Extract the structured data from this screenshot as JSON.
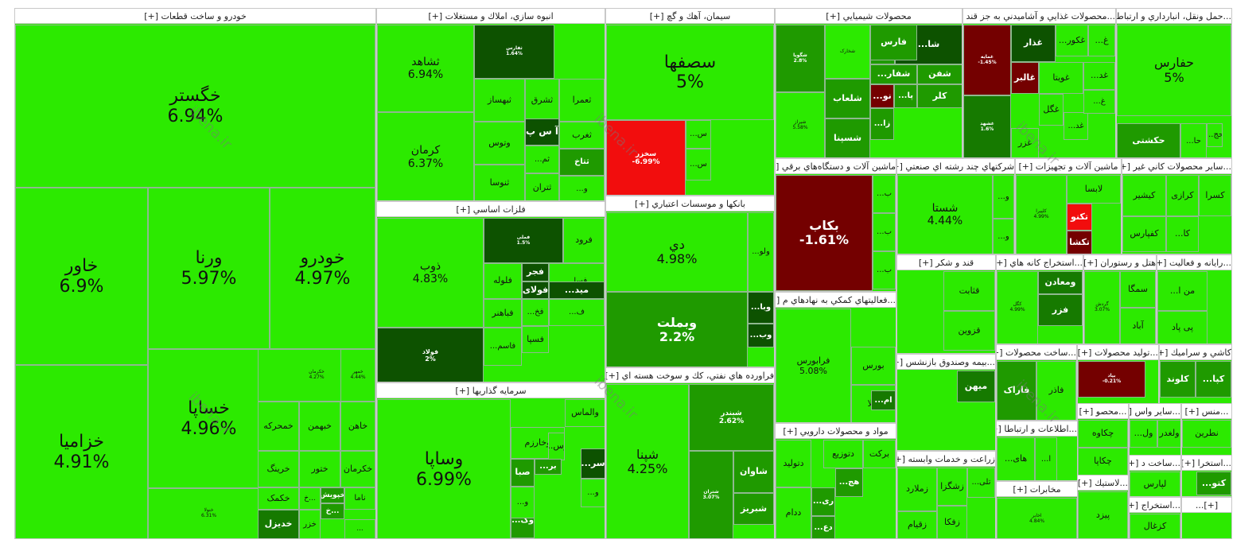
{
  "chart_data": {
    "type": "treemap",
    "title": "",
    "colors": {
      "up_bright": "#2cea00",
      "up": "#22bb00",
      "up_mid": "#1f9a00",
      "up_dark": "#167a00",
      "up_darker": "#0d5200",
      "down": "#f20d0d",
      "down_dark": "#740000",
      "text_light": "#ffffff",
      "text_dark": "#111111"
    },
    "sectors": [
      {
        "name": "خودرو و ساخت قطعات [+]",
        "tiles": [
          {
            "symbol": "خگستر",
            "change": "6.94%"
          },
          {
            "symbol": "خاور",
            "change": "6.9%"
          },
          {
            "symbol": "ورنا",
            "change": "5.97%"
          },
          {
            "symbol": "خودرو",
            "change": "4.97%"
          },
          {
            "symbol": "خزامیا",
            "change": "4.91%"
          },
          {
            "symbol": "خساپا",
            "change": "4.96%"
          },
          {
            "symbol": "خنولا",
            "change": "6.31%"
          },
          {
            "symbol": "خکرمان",
            "change": "4.27%"
          },
          {
            "symbol": "خمحرکه",
            "change": ""
          },
          {
            "symbol": "خبهمن",
            "change": ""
          },
          {
            "symbol": "خاهن",
            "change": ""
          },
          {
            "symbol": "خرینگ",
            "change": ""
          },
          {
            "symbol": "ختور",
            "change": ""
          },
          {
            "symbol": "خکرمان",
            "change": ""
          },
          {
            "symbol": "خکمک",
            "change": ""
          },
          {
            "symbol": "خ...",
            "change": ""
          },
          {
            "symbol": "خپویش",
            "change": ""
          },
          {
            "symbol": "ناما",
            "change": ""
          },
          {
            "symbol": "خدیزل",
            "change": ""
          },
          {
            "symbol": "خزر",
            "change": ""
          },
          {
            "symbol": "خ...",
            "change": ""
          },
          {
            "symbol": "خمهر",
            "change": "4.44%"
          },
          {
            "symbol": "...",
            "change": ""
          }
        ]
      },
      {
        "name": "انبوه سازي، املاك و مستغلات [+]",
        "tiles": [
          {
            "symbol": "ثشاهد",
            "change": "6.94%"
          },
          {
            "symbol": "کرمان",
            "change": "6.37%"
          },
          {
            "symbol": "ثفارس",
            "change": "1.64%"
          },
          {
            "symbol": "ثبهساز",
            "change": ""
          },
          {
            "symbol": "ثشرق",
            "change": ""
          },
          {
            "symbol": "ثعمرا",
            "change": ""
          },
          {
            "symbol": "وتوس",
            "change": ""
          },
          {
            "symbol": "آ س پ",
            "change": ""
          },
          {
            "symbol": "ثغرب",
            "change": ""
          },
          {
            "symbol": "ثنوسا",
            "change": ""
          },
          {
            "symbol": "...ثم",
            "change": ""
          },
          {
            "symbol": "ثتاخ",
            "change": ""
          },
          {
            "symbol": "ثتران",
            "change": ""
          },
          {
            "symbol": "...و",
            "change": ""
          }
        ]
      },
      {
        "name": "فلزات اساسي [+]",
        "tiles": [
          {
            "symbol": "ذوب",
            "change": "4.83%"
          },
          {
            "symbol": "فولاد",
            "change": "2%"
          },
          {
            "symbol": "فملی",
            "change": "1.5%"
          },
          {
            "symbol": "فرود",
            "change": ""
          },
          {
            "symbol": "فلوله",
            "change": ""
          },
          {
            "symbol": "فجر",
            "change": ""
          },
          {
            "symbol": "...فسا",
            "change": ""
          },
          {
            "symbol": "فولای",
            "change": ""
          },
          {
            "symbol": "...مید",
            "change": ""
          },
          {
            "symbol": "...ف",
            "change": ""
          },
          {
            "symbol": "فباهنر",
            "change": ""
          },
          {
            "symbol": "...فخ",
            "change": ""
          },
          {
            "symbol": "فسپا",
            "change": ""
          },
          {
            "symbol": "...فاسم",
            "change": ""
          }
        ]
      },
      {
        "name": "سرمايه گذاريها [+]",
        "tiles": [
          {
            "symbol": "وساپا",
            "change": "6.99%"
          },
          {
            "symbol": "والماس",
            "change": ""
          },
          {
            "symbol": "وخارزم",
            "change": ""
          },
          {
            "symbol": "...وس",
            "change": ""
          },
          {
            "symbol": "...سر",
            "change": ""
          },
          {
            "symbol": "صبا",
            "change": ""
          },
          {
            "symbol": "...بر",
            "change": ""
          },
          {
            "symbol": "...و",
            "change": ""
          },
          {
            "symbol": "...وگ",
            "change": ""
          },
          {
            "symbol": "...و",
            "change": ""
          }
        ]
      },
      {
        "name": "سيمان، آهك و گچ [+]",
        "tiles": [
          {
            "symbol": "سصفها",
            "change": "5%"
          },
          {
            "symbol": "سخزر",
            "change": "-6.99%"
          },
          {
            "symbol": "...س",
            "change": ""
          },
          {
            "symbol": "...س",
            "change": ""
          }
        ]
      },
      {
        "name": "بانكها و موسسات اعتباري [+]",
        "tiles": [
          {
            "symbol": "دي",
            "change": "4.98%"
          },
          {
            "symbol": "وبملت",
            "change": "2.2%"
          },
          {
            "symbol": "...ولو",
            "change": ""
          },
          {
            "symbol": "...وبا",
            "change": ""
          },
          {
            "symbol": "...وب",
            "change": ""
          }
        ]
      },
      {
        "name": "فراورده هاي نفتي، كك و سوخت هسته اي [+]",
        "tiles": [
          {
            "symbol": "شپنا",
            "change": "4.25%"
          },
          {
            "symbol": "شبندر",
            "change": "2.62%"
          },
          {
            "symbol": "شبریز",
            "change": ""
          },
          {
            "symbol": "شاوان",
            "change": ""
          },
          {
            "symbol": "شتران",
            "change": "3.07%"
          }
        ]
      },
      {
        "name": "محصولات شيميايي [+]",
        "tiles": [
          {
            "symbol": "شگویا",
            "change": "2.8%"
          },
          {
            "symbol": "شخارک",
            "change": ""
          },
          {
            "symbol": "...ش",
            "change": ""
          },
          {
            "symbol": "...شا",
            "change": ""
          },
          {
            "symbol": "فارس",
            "change": ""
          },
          {
            "symbol": "...شفار",
            "change": ""
          },
          {
            "symbol": "شفن",
            "change": ""
          },
          {
            "symbol": "کلر",
            "change": ""
          },
          {
            "symbol": "شلعاب",
            "change": ""
          },
          {
            "symbol": "...نو",
            "change": ""
          },
          {
            "symbol": "...پا",
            "change": ""
          },
          {
            "symbol": "شسپنا",
            "change": ""
          },
          {
            "symbol": "...زا",
            "change": ""
          },
          {
            "symbol": "شیراز",
            "change": "5.58%"
          }
        ]
      },
      {
        "name": "...محصولات غذايي و آشاميدني به جز قند [+]",
        "tiles": [
          {
            "symbol": "غمایه",
            "change": "-1.45%"
          },
          {
            "symbol": "غذار",
            "change": ""
          },
          {
            "symbol": "...غکور",
            "change": ""
          },
          {
            "symbol": "...غ",
            "change": ""
          },
          {
            "symbol": "غالبر",
            "change": ""
          },
          {
            "symbol": "غویتا",
            "change": ""
          },
          {
            "symbol": "...غد",
            "change": ""
          },
          {
            "symbol": "غشهد",
            "change": "1.6%"
          },
          {
            "symbol": "غگل",
            "change": ""
          },
          {
            "symbol": "غزر",
            "change": ""
          },
          {
            "symbol": "...غد",
            "change": ""
          },
          {
            "symbol": "...غ",
            "change": ""
          }
        ]
      },
      {
        "name": "...حمل ونقل، انبارداري و ارتباط [+]",
        "tiles": [
          {
            "symbol": "حفارس",
            "change": "5%"
          },
          {
            "symbol": "حکشتی",
            "change": ""
          },
          {
            "symbol": "...حا",
            "change": ""
          },
          {
            "symbol": "...حج",
            "change": ""
          }
        ]
      },
      {
        "name": "ماشين آلات و دستگاه‌هاي برقي [+]",
        "tiles": [
          {
            "symbol": "بکاب",
            "change": "-1.61%"
          },
          {
            "symbol": "...ب",
            "change": ""
          },
          {
            "symbol": "...ب",
            "change": ""
          },
          {
            "symbol": "...ب",
            "change": ""
          }
        ]
      },
      {
        "name": "شركتهاي چند رشته اي صنعتي [+]",
        "tiles": [
          {
            "symbol": "شستا",
            "change": "4.44%"
          },
          {
            "symbol": "...و",
            "change": ""
          },
          {
            "symbol": "...و",
            "change": ""
          }
        ]
      },
      {
        "name": "ماشين آلات و تجهيزات [+]",
        "tiles": [
          {
            "symbol": "کلپیرا",
            "change": "4.99%"
          },
          {
            "symbol": "لابسا",
            "change": ""
          },
          {
            "symbol": "تکنو",
            "change": ""
          },
          {
            "symbol": "تکشا",
            "change": ""
          }
        ]
      },
      {
        "name": "...ساير محصولات كاني غير [+]",
        "tiles": [
          {
            "symbol": "کسرا",
            "change": ""
          },
          {
            "symbol": "کرازی",
            "change": ""
          },
          {
            "symbol": "کیشیر",
            "change": ""
          },
          {
            "symbol": "کفپارس",
            "change": ""
          },
          {
            "symbol": "...کا",
            "change": ""
          }
        ]
      },
      {
        "name": "...فعاليتهاي كمكي به نهادهاي م [+]",
        "tiles": [
          {
            "symbol": "فرابورس",
            "change": "5.08%"
          },
          {
            "symbol": "بورس",
            "change": ""
          },
          {
            "symbol": "کالا",
            "change": ""
          },
          {
            "symbol": "...ام",
            "change": ""
          }
        ]
      },
      {
        "name": "قند و شکر [+]",
        "tiles": [
          {
            "symbol": "قثابت",
            "change": ""
          },
          {
            "symbol": "قزوین",
            "change": ""
          }
        ]
      },
      {
        "name": "...استخراج كانه هاي [+]",
        "tiles": [
          {
            "symbol": "کگل",
            "change": "4.99%"
          },
          {
            "symbol": "ومعادن",
            "change": ""
          },
          {
            "symbol": "فزر",
            "change": ""
          }
        ]
      },
      {
        "name": "هتل و رستوران [+]",
        "tiles": [
          {
            "symbol": "سمگا",
            "change": ""
          },
          {
            "symbol": "آباد",
            "change": ""
          },
          {
            "symbol": "گردش",
            "change": "3.07%"
          }
        ]
      },
      {
        "name": "...رايانه و فعاليت [+]",
        "tiles": [
          {
            "symbol": "...من ا",
            "change": ""
          },
          {
            "symbol": "پی پاد",
            "change": ""
          }
        ]
      },
      {
        "name": "...بيمه وصندوق بازنشس [+]",
        "tiles": [
          {
            "symbol": "میهن",
            "change": ""
          }
        ]
      },
      {
        "name": "...ساخت محصولات [+]",
        "tiles": [
          {
            "symbol": "فاراک",
            "change": ""
          },
          {
            "symbol": "فاذر",
            "change": ""
          }
        ]
      },
      {
        "name": "...توليد محصولات [+]",
        "tiles": [
          {
            "symbol": "بپاد",
            "change": "-0.21%"
          }
        ]
      },
      {
        "name": "كاشي و سراميك [+]",
        "tiles": [
          {
            "symbol": "کلوند",
            "change": ""
          },
          {
            "symbol": "...کپا",
            "change": ""
          }
        ]
      },
      {
        "name": "مواد و محصولات دارويي [+]",
        "tiles": [
          {
            "symbol": "برکت",
            "change": ""
          },
          {
            "symbol": "دتوزیع",
            "change": ""
          },
          {
            "symbol": "دتولید",
            "change": ""
          },
          {
            "symbol": "...هج",
            "change": ""
          },
          {
            "symbol": "...ری",
            "change": ""
          },
          {
            "symbol": "ددام",
            "change": ""
          },
          {
            "symbol": "...دع",
            "change": ""
          }
        ]
      },
      {
        "name": "...اطلاعات و ارتباطا [+]",
        "tiles": [
          {
            "symbol": "...های",
            "change": ""
          },
          {
            "symbol": "...ا",
            "change": ""
          }
        ]
      },
      {
        "name": "زراعت و خدمات وابسته [+]",
        "tiles": [
          {
            "symbol": "زملارد",
            "change": ""
          },
          {
            "symbol": "زشگزا",
            "change": ""
          },
          {
            "symbol": "...تلی",
            "change": ""
          },
          {
            "symbol": "زفکا",
            "change": ""
          },
          {
            "symbol": "زقیام",
            "change": ""
          }
        ]
      },
      {
        "name": "...محصو [+]",
        "tiles": [
          {
            "symbol": "چکاوه",
            "change": ""
          },
          {
            "symbol": "چکاپا",
            "change": ""
          }
        ]
      },
      {
        "name": "...ساير واس [+]",
        "tiles": [
          {
            "symbol": "ولغدر",
            "change": ""
          },
          {
            "symbol": "...ول",
            "change": ""
          }
        ]
      },
      {
        "name": "...منس [+]",
        "tiles": [
          {
            "symbol": "نطرین",
            "change": ""
          }
        ]
      },
      {
        "name": "...ساخت د [+]",
        "tiles": [
          {
            "symbol": "لپارس",
            "change": ""
          }
        ]
      },
      {
        "name": "...استخرا [+]",
        "tiles": [
          {
            "symbol": "...کتو",
            "change": ""
          }
        ]
      },
      {
        "name": "مخابرات [+]",
        "tiles": [
          {
            "symbol": "اخابر",
            "change": "4.84%"
          }
        ]
      },
      {
        "name": "...لاستيك [+]",
        "tiles": [
          {
            "symbol": "پیزد",
            "change": ""
          }
        ]
      },
      {
        "name": "...استخراج [+]",
        "tiles": [
          {
            "symbol": "کزغال",
            "change": ""
          }
        ]
      },
      {
        "name": "[+]...",
        "tiles": []
      },
      {
        "name": "[+]...",
        "tiles": []
      }
    ],
    "watermark": "ibena.ir"
  }
}
